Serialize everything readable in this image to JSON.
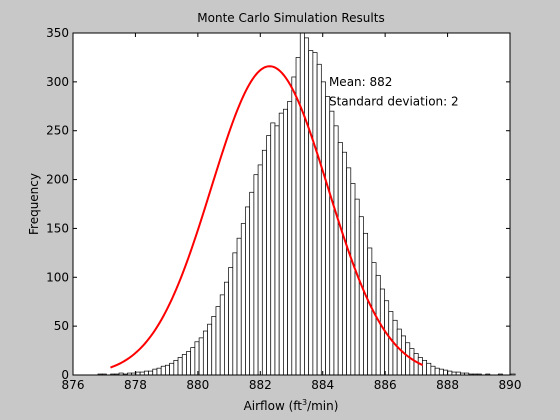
{
  "chart_data": {
    "type": "bar",
    "title": "Monte Carlo Simulation Results",
    "xlabel_prefix": "Airflow (ft",
    "xlabel_sup": "3",
    "xlabel_suffix": "/min)",
    "ylabel": "Frequency",
    "xlim": [
      876,
      890
    ],
    "ylim": [
      0,
      350
    ],
    "xticks": [
      876,
      878,
      880,
      882,
      884,
      886,
      888,
      890
    ],
    "yticks": [
      0,
      50,
      100,
      150,
      200,
      250,
      300,
      350
    ],
    "grid": false,
    "bin_width": 0.135,
    "bin_start": 876.8,
    "counts": [
      1,
      1,
      0,
      1,
      1,
      2,
      1,
      2,
      2,
      3,
      3,
      4,
      4,
      6,
      7,
      9,
      10,
      12,
      15,
      18,
      21,
      24,
      28,
      34,
      38,
      45,
      52,
      60,
      70,
      82,
      95,
      110,
      125,
      140,
      155,
      172,
      187,
      205,
      215,
      230,
      245,
      258,
      255,
      268,
      272,
      280,
      305,
      325,
      350,
      345,
      332,
      330,
      318,
      300,
      285,
      270,
      255,
      238,
      228,
      212,
      196,
      180,
      162,
      145,
      130,
      115,
      102,
      88,
      76,
      65,
      56,
      47,
      40,
      33,
      27,
      22,
      18,
      15,
      12,
      9,
      7,
      6,
      5,
      4,
      3,
      3,
      2,
      2,
      1,
      1,
      1,
      0,
      1,
      0,
      0,
      1,
      0,
      0,
      1
    ],
    "fit": {
      "type": "normal",
      "color": "#ff0000",
      "mean": 882.3,
      "std": 1.87,
      "peak": 316
    },
    "annotations": [
      {
        "text": "Mean: 882",
        "x": 884.2,
        "y": 300
      },
      {
        "text": "Standard deviation: 2",
        "x": 884.2,
        "y": 280
      }
    ]
  }
}
